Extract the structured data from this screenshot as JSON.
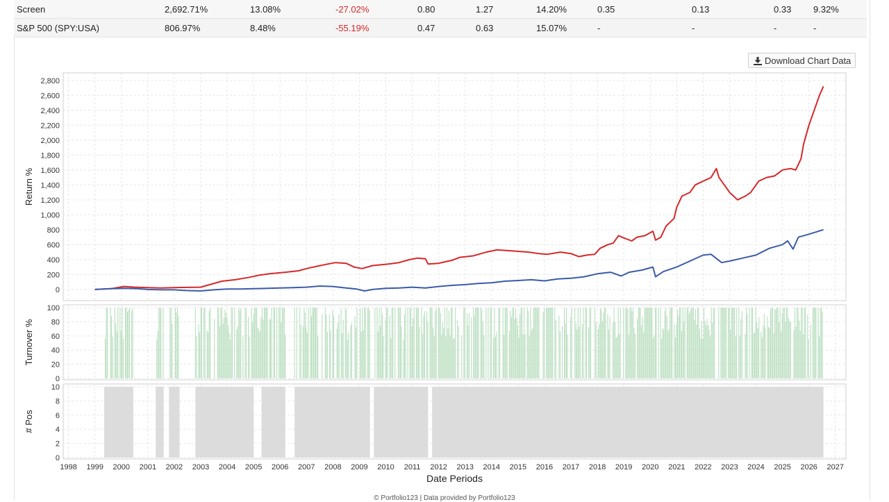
{
  "stats_table": {
    "rows": [
      {
        "name": "Screen",
        "total_return": "2,692.71%",
        "annualized": "13.08%",
        "max_drawdown": "-27.02%",
        "sharpe": "0.80",
        "sortino": "1.27",
        "std_dev": "14.20%",
        "col7": "0.35",
        "col8": "0.13",
        "col9": "0.33",
        "col10": "9.32%"
      },
      {
        "name": "S&P 500 (SPY:USA)",
        "total_return": "806.97%",
        "annualized": "8.48%",
        "max_drawdown": "-55.19%",
        "sharpe": "0.47",
        "sortino": "0.63",
        "std_dev": "15.07%",
        "col7": "-",
        "col8": "-",
        "col9": "-",
        "col10": "-"
      }
    ]
  },
  "download_button": {
    "label": "Download Chart Data",
    "icon": "download-icon"
  },
  "footer": "© Portfolio123 | Data provided by Portfolio123",
  "chart_data": {
    "type": "line",
    "xlabel": "Date Periods",
    "x_ticks": [
      "1998",
      "1999",
      "2000",
      "2001",
      "2002",
      "2003",
      "2004",
      "2005",
      "2006",
      "2007",
      "2008",
      "2009",
      "2010",
      "2011",
      "2012",
      "2013",
      "2014",
      "2015",
      "2016",
      "2017",
      "2018",
      "2019",
      "2020",
      "2021",
      "2022",
      "2023",
      "2024",
      "2025",
      "2026",
      "2027"
    ],
    "grid": true,
    "panels": {
      "returns": {
        "ylabel": "Return %",
        "ylim": [
          -150,
          2900
        ],
        "y_ticks": [
          "0",
          "200",
          "400",
          "600",
          "800",
          "1,000",
          "1,200",
          "1,400",
          "1,600",
          "1,800",
          "2,000",
          "2,200",
          "2,400",
          "2,600",
          "2,800"
        ],
        "series": [
          {
            "color": "#d62728",
            "points": [
              [
                1999.0,
                0
              ],
              [
                1999.6,
                10
              ],
              [
                2000.1,
                40
              ],
              [
                2000.5,
                30
              ],
              [
                2001.0,
                25
              ],
              [
                2001.5,
                20
              ],
              [
                2002.0,
                25
              ],
              [
                2002.5,
                28
              ],
              [
                2003.0,
                30
              ],
              [
                2003.3,
                60
              ],
              [
                2003.8,
                110
              ],
              [
                2004.3,
                130
              ],
              [
                2004.8,
                160
              ],
              [
                2005.2,
                190
              ],
              [
                2005.6,
                210
              ],
              [
                2006.2,
                230
              ],
              [
                2006.7,
                250
              ],
              [
                2007.0,
                280
              ],
              [
                2007.4,
                310
              ],
              [
                2007.8,
                340
              ],
              [
                2008.1,
                360
              ],
              [
                2008.5,
                350
              ],
              [
                2008.8,
                300
              ],
              [
                2009.1,
                280
              ],
              [
                2009.5,
                320
              ],
              [
                2009.8,
                330
              ],
              [
                2010.1,
                340
              ],
              [
                2010.5,
                360
              ],
              [
                2010.9,
                400
              ],
              [
                2011.2,
                420
              ],
              [
                2011.5,
                410
              ],
              [
                2011.6,
                340
              ],
              [
                2012.0,
                350
              ],
              [
                2012.5,
                390
              ],
              [
                2012.8,
                430
              ],
              [
                2013.3,
                450
              ],
              [
                2013.8,
                500
              ],
              [
                2014.2,
                530
              ],
              [
                2014.6,
                520
              ],
              [
                2015.0,
                510
              ],
              [
                2015.4,
                500
              ],
              [
                2015.8,
                480
              ],
              [
                2016.1,
                470
              ],
              [
                2016.6,
                500
              ],
              [
                2017.0,
                480
              ],
              [
                2017.3,
                440
              ],
              [
                2017.6,
                460
              ],
              [
                2017.9,
                470
              ],
              [
                2018.1,
                550
              ],
              [
                2018.4,
                600
              ],
              [
                2018.6,
                620
              ],
              [
                2018.8,
                720
              ],
              [
                2019.0,
                690
              ],
              [
                2019.3,
                650
              ],
              [
                2019.5,
                700
              ],
              [
                2019.8,
                720
              ],
              [
                2020.1,
                780
              ],
              [
                2020.2,
                660
              ],
              [
                2020.4,
                700
              ],
              [
                2020.6,
                850
              ],
              [
                2020.9,
                950
              ],
              [
                2021.0,
                1100
              ],
              [
                2021.2,
                1250
              ],
              [
                2021.5,
                1300
              ],
              [
                2021.7,
                1400
              ],
              [
                2022.0,
                1450
              ],
              [
                2022.3,
                1500
              ],
              [
                2022.5,
                1620
              ],
              [
                2022.6,
                1500
              ],
              [
                2022.8,
                1400
              ],
              [
                2023.0,
                1300
              ],
              [
                2023.3,
                1200
              ],
              [
                2023.6,
                1250
              ],
              [
                2023.8,
                1300
              ],
              [
                2024.1,
                1450
              ],
              [
                2024.4,
                1500
              ],
              [
                2024.7,
                1520
              ],
              [
                2025.0,
                1600
              ],
              [
                2025.3,
                1620
              ],
              [
                2025.5,
                1600
              ],
              [
                2025.7,
                1750
              ],
              [
                2025.8,
                1950
              ],
              [
                2026.0,
                2200
              ],
              [
                2026.2,
                2400
              ],
              [
                2026.4,
                2600
              ],
              [
                2026.55,
                2720
              ]
            ]
          },
          {
            "color": "#3a5ba8",
            "points": [
              [
                1999.0,
                0
              ],
              [
                1999.6,
                10
              ],
              [
                2000.1,
                15
              ],
              [
                2000.6,
                10
              ],
              [
                2001.0,
                0
              ],
              [
                2001.5,
                -5
              ],
              [
                2002.0,
                -5
              ],
              [
                2002.5,
                -15
              ],
              [
                2003.0,
                -20
              ],
              [
                2003.5,
                -5
              ],
              [
                2004.0,
                5
              ],
              [
                2004.5,
                5
              ],
              [
                2005.0,
                10
              ],
              [
                2005.5,
                15
              ],
              [
                2006.0,
                20
              ],
              [
                2006.5,
                25
              ],
              [
                2007.0,
                30
              ],
              [
                2007.5,
                45
              ],
              [
                2008.0,
                40
              ],
              [
                2008.5,
                20
              ],
              [
                2008.9,
                5
              ],
              [
                2009.2,
                -20
              ],
              [
                2009.5,
                0
              ],
              [
                2010.0,
                15
              ],
              [
                2010.5,
                20
              ],
              [
                2011.0,
                30
              ],
              [
                2011.5,
                20
              ],
              [
                2012.0,
                40
              ],
              [
                2012.5,
                55
              ],
              [
                2013.0,
                65
              ],
              [
                2013.5,
                80
              ],
              [
                2014.0,
                90
              ],
              [
                2014.5,
                110
              ],
              [
                2015.0,
                120
              ],
              [
                2015.5,
                130
              ],
              [
                2016.0,
                115
              ],
              [
                2016.5,
                140
              ],
              [
                2017.0,
                150
              ],
              [
                2017.5,
                170
              ],
              [
                2018.0,
                210
              ],
              [
                2018.5,
                230
              ],
              [
                2018.9,
                180
              ],
              [
                2019.2,
                230
              ],
              [
                2019.7,
                260
              ],
              [
                2020.1,
                300
              ],
              [
                2020.2,
                170
              ],
              [
                2020.5,
                240
              ],
              [
                2021.0,
                300
              ],
              [
                2021.5,
                380
              ],
              [
                2022.0,
                460
              ],
              [
                2022.3,
                470
              ],
              [
                2022.7,
                360
              ],
              [
                2023.0,
                380
              ],
              [
                2023.5,
                420
              ],
              [
                2024.0,
                460
              ],
              [
                2024.5,
                550
              ],
              [
                2025.0,
                600
              ],
              [
                2025.2,
                650
              ],
              [
                2025.4,
                540
              ],
              [
                2025.6,
                700
              ],
              [
                2026.0,
                740
              ],
              [
                2026.55,
                800
              ]
            ]
          }
        ]
      },
      "turnover": {
        "ylabel": "Turnover %",
        "ylim": [
          0,
          100
        ],
        "y_ticks": [
          "0",
          "20",
          "40",
          "60",
          "80",
          "100"
        ],
        "color": "#b3dbb9",
        "active_periods": [
          [
            1999.35,
            2000.45
          ],
          [
            2001.3,
            2001.6
          ],
          [
            2001.8,
            2002.2
          ],
          [
            2002.8,
            2006.2
          ],
          [
            2006.55,
            2009.4
          ],
          [
            2009.55,
            2026.55
          ]
        ]
      },
      "positions": {
        "ylabel": "# Pos",
        "ylim": [
          0,
          10
        ],
        "y_ticks": [
          "0",
          "2",
          "4",
          "6",
          "8",
          "10"
        ],
        "color": "#dcdcdc",
        "held_periods": [
          [
            1999.35,
            2000.45
          ],
          [
            2001.3,
            2001.6
          ],
          [
            2001.8,
            2002.2
          ],
          [
            2002.8,
            2005.0
          ],
          [
            2005.3,
            2006.2
          ],
          [
            2006.55,
            2009.4
          ],
          [
            2009.55,
            2011.6
          ],
          [
            2011.75,
            2026.55
          ]
        ]
      }
    }
  }
}
